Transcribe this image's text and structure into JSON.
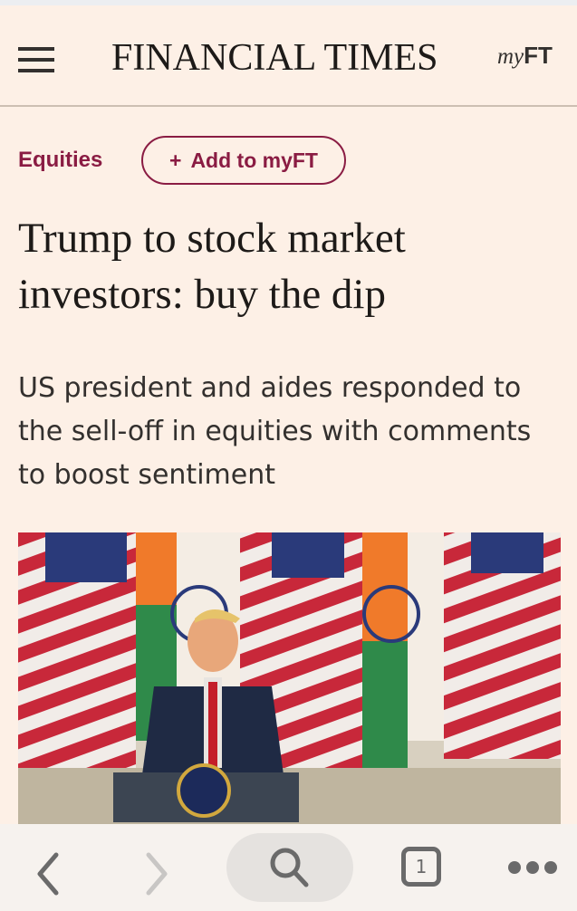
{
  "header": {
    "logo": "FINANCIAL TIMES",
    "myft_prefix": "my",
    "myft_suffix": "FT"
  },
  "article": {
    "topic": "Equities",
    "add_button": {
      "icon": "+",
      "label": "Add to myFT"
    },
    "title": "Trump to stock market investors: buy the dip",
    "standfirst": "US president and aides responded to the sell-off in equities with comments to boost sentiment"
  },
  "browser_bar": {
    "tab_count": "1"
  },
  "colors": {
    "background": "#fdf0e6",
    "accent": "#8a1c43",
    "text": "#1d1a18"
  }
}
